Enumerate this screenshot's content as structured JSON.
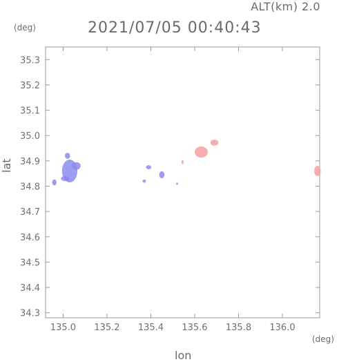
{
  "header": {
    "altitude": "ALT(km) 2.0",
    "timestamp": "2021/07/05 00:40:43"
  },
  "chart_data": {
    "type": "scatter",
    "xlabel": "lon",
    "ylabel": "lat",
    "x_unit": "(deg)",
    "y_unit": "(deg)",
    "xlim": [
      134.92,
      136.17
    ],
    "ylim": [
      34.28,
      35.35
    ],
    "x_ticks": [
      "135.0",
      "135.2",
      "135.4",
      "135.6",
      "135.8",
      "136.0"
    ],
    "y_ticks": [
      "34.3",
      "34.4",
      "34.5",
      "34.6",
      "34.7",
      "34.8",
      "34.9",
      "35.0",
      "35.1",
      "35.2",
      "35.3"
    ],
    "grid": false,
    "colors": {
      "negative": "#8c8cf0",
      "positive": "#f2a0a0",
      "axis": "#9a9a9a"
    },
    "series": [
      {
        "values": [
          {
            "x": 135.03,
            "y": 34.86,
            "rx": 0.035,
            "ry": 0.045,
            "sign": "negative"
          },
          {
            "x": 135.06,
            "y": 34.88,
            "rx": 0.02,
            "ry": 0.015,
            "sign": "negative"
          },
          {
            "x": 135.02,
            "y": 34.92,
            "rx": 0.012,
            "ry": 0.012,
            "sign": "negative"
          },
          {
            "x": 134.96,
            "y": 34.815,
            "rx": 0.01,
            "ry": 0.012,
            "sign": "negative"
          },
          {
            "x": 135.01,
            "y": 34.83,
            "rx": 0.02,
            "ry": 0.01,
            "sign": "negative"
          },
          {
            "x": 135.39,
            "y": 34.875,
            "rx": 0.012,
            "ry": 0.008,
            "sign": "negative"
          },
          {
            "x": 135.37,
            "y": 34.82,
            "rx": 0.008,
            "ry": 0.006,
            "sign": "negative"
          },
          {
            "x": 135.45,
            "y": 34.845,
            "rx": 0.012,
            "ry": 0.014,
            "sign": "negative"
          },
          {
            "x": 135.52,
            "y": 34.81,
            "rx": 0.004,
            "ry": 0.004,
            "sign": "negative"
          },
          {
            "x": 135.63,
            "y": 34.935,
            "rx": 0.03,
            "ry": 0.022,
            "sign": "positive"
          },
          {
            "x": 135.69,
            "y": 34.972,
            "rx": 0.018,
            "ry": 0.012,
            "sign": "positive"
          },
          {
            "x": 135.545,
            "y": 34.895,
            "rx": 0.005,
            "ry": 0.008,
            "sign": "positive"
          },
          {
            "x": 136.16,
            "y": 34.86,
            "rx": 0.015,
            "ry": 0.02,
            "sign": "positive"
          }
        ]
      }
    ]
  }
}
